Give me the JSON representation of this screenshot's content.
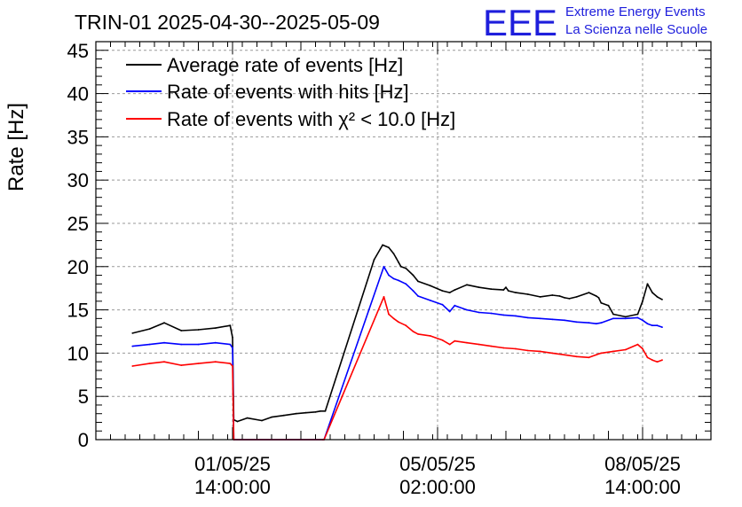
{
  "chart_data": {
    "type": "line",
    "title": "TRIN-01 2025-04-30--2025-05-09",
    "xlabel": "",
    "ylabel": "Rate [Hz]",
    "ylim": [
      0,
      46
    ],
    "yticks": [
      "0",
      "5",
      "10",
      "15",
      "20",
      "25",
      "30",
      "35",
      "40",
      "45"
    ],
    "xtick_labels": [
      {
        "date": "01/05/25",
        "time": "14:00:00"
      },
      {
        "date": "05/05/25",
        "time": "02:00:00"
      },
      {
        "date": "08/05/25",
        "time": "14:00:00"
      }
    ],
    "xticks_hours": [
      14,
      98,
      182
    ],
    "xlim_hours": [
      -42,
      210
    ],
    "x_unit": "hours from 01/05/25 00:00:00",
    "grid": true,
    "legend_position": "top-left",
    "series": [
      {
        "name": "Average rate of events [Hz]",
        "color": "#000000",
        "x": [
          -27,
          -20,
          -14,
          -7,
          0,
          7,
          13,
          14,
          14.5,
          16,
          20,
          26,
          30,
          35,
          40,
          44,
          48,
          50,
          52,
          72,
          75.5,
          78,
          80,
          81,
          82,
          83,
          85,
          88,
          90,
          95,
          100,
          103,
          105,
          110,
          115,
          120,
          125,
          126,
          127,
          130,
          135,
          140,
          145,
          148,
          150,
          152,
          155,
          160,
          163,
          164,
          165,
          168,
          170,
          175,
          180,
          182,
          184,
          186,
          188,
          190
        ],
        "y": [
          12.3,
          12.8,
          13.5,
          12.6,
          12.7,
          12.9,
          13.2,
          11.8,
          2.3,
          2.1,
          2.5,
          2.2,
          2.6,
          2.8,
          3.0,
          3.1,
          3.2,
          3.3,
          3.3,
          20.8,
          22.5,
          22.2,
          21.5,
          21.0,
          20.5,
          20.0,
          19.8,
          19.0,
          18.3,
          17.8,
          17.2,
          17.0,
          17.3,
          17.9,
          17.6,
          17.4,
          17.3,
          17.6,
          17.2,
          17.0,
          16.8,
          16.5,
          16.7,
          16.6,
          16.4,
          16.3,
          16.5,
          17.0,
          16.6,
          16.4,
          15.8,
          15.5,
          14.5,
          14.2,
          14.5,
          16.0,
          18.0,
          17.0,
          16.5,
          16.2
        ]
      },
      {
        "name": "Rate of events with hits [Hz]",
        "color": "#0000ff",
        "x": [
          -27,
          -20,
          -14,
          -7,
          0,
          7,
          13,
          14,
          14.5,
          51,
          51.5,
          76,
          78,
          80,
          82,
          85,
          88,
          90,
          95,
          100,
          103,
          105,
          110,
          115,
          120,
          125,
          130,
          135,
          140,
          145,
          150,
          155,
          160,
          163,
          165,
          170,
          175,
          180,
          182,
          184,
          186,
          188,
          190
        ],
        "y": [
          10.8,
          11.0,
          11.2,
          11.0,
          11.0,
          11.2,
          11.0,
          10.6,
          0,
          0,
          0,
          20.0,
          19.0,
          18.6,
          18.4,
          18.0,
          17.2,
          16.6,
          16.1,
          15.6,
          14.8,
          15.5,
          15.0,
          14.7,
          14.6,
          14.4,
          14.3,
          14.1,
          14.0,
          13.9,
          13.8,
          13.6,
          13.5,
          13.4,
          13.5,
          14.0,
          14.0,
          14.1,
          13.8,
          13.4,
          13.2,
          13.2,
          13.0
        ]
      },
      {
        "name": "Rate of events with χ² < 10.0 [Hz]",
        "color": "#ff0000",
        "x": [
          -27,
          -20,
          -14,
          -7,
          0,
          7,
          13,
          14,
          14.5,
          51,
          51.5,
          76,
          78,
          80,
          82,
          85,
          88,
          90,
          95,
          100,
          103,
          105,
          110,
          115,
          120,
          125,
          130,
          135,
          140,
          145,
          150,
          155,
          160,
          163,
          165,
          170,
          175,
          180,
          182,
          184,
          186,
          188,
          190
        ],
        "y": [
          8.5,
          8.8,
          9.0,
          8.6,
          8.8,
          9.0,
          8.8,
          8.5,
          0,
          0,
          0,
          16.5,
          14.5,
          14.0,
          13.6,
          13.2,
          12.5,
          12.2,
          12.0,
          11.5,
          11.0,
          11.4,
          11.2,
          11.0,
          10.8,
          10.6,
          10.5,
          10.3,
          10.2,
          10.0,
          9.8,
          9.6,
          9.5,
          9.8,
          10.0,
          10.2,
          10.4,
          11.0,
          10.5,
          9.5,
          9.2,
          9.0,
          9.2
        ]
      }
    ]
  },
  "logo": {
    "letters": "EEE",
    "line1": "Extreme Energy Events",
    "line2": "La Scienza nelle Scuole",
    "color": "#1e1edc"
  }
}
